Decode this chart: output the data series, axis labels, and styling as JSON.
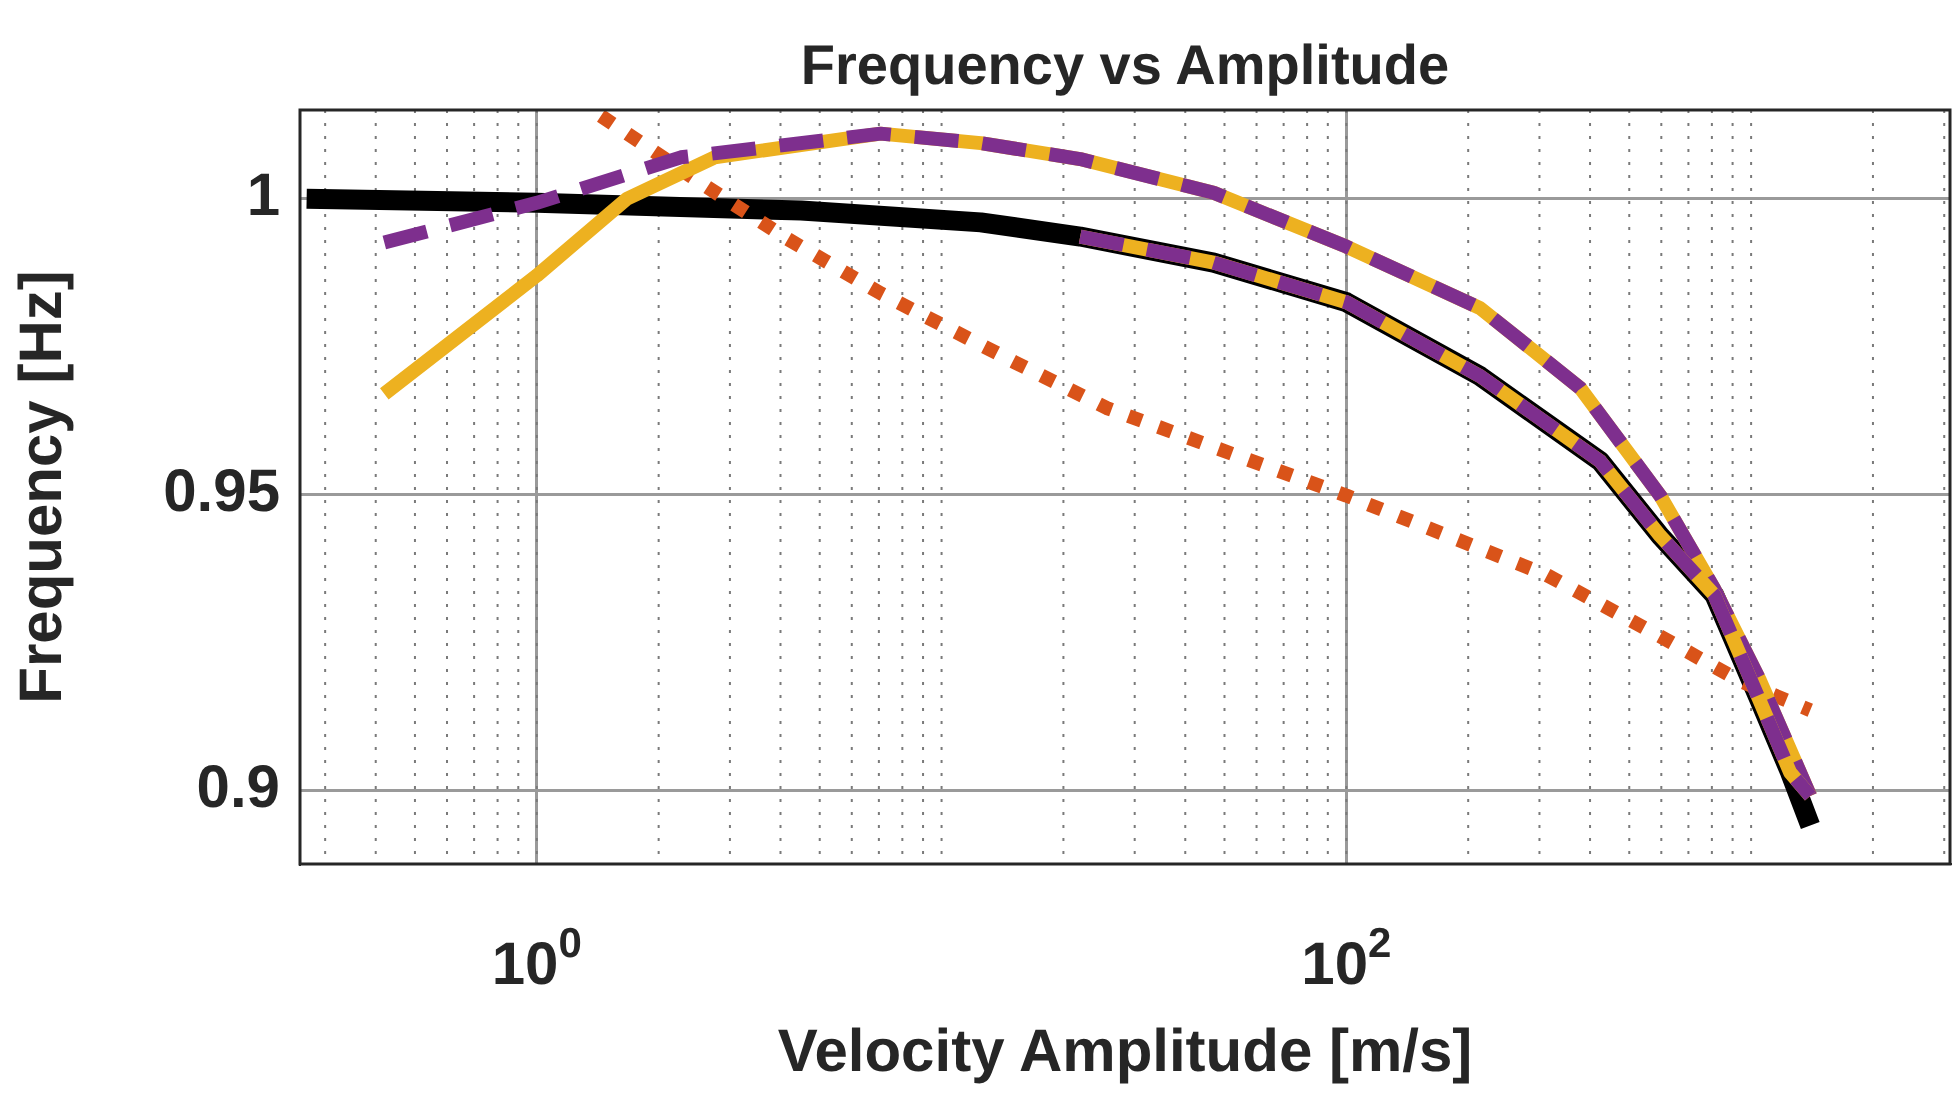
{
  "chart_data": {
    "type": "line",
    "title": "Frequency vs Amplitude",
    "xlabel": "Velocity Amplitude [m/s]",
    "ylabel": "Frequency [Hz]",
    "log": "x",
    "grid": true,
    "legend": false,
    "marker": "none",
    "xlim": [
      0.26,
      3100
    ],
    "xticks": [
      {
        "value": 1,
        "label": "10$^{0}$"
      },
      {
        "value": 100,
        "label": "10$^{2}$"
      }
    ],
    "ylim": [
      0.8875,
      1.015
    ],
    "yticks": [
      0.9,
      0.95,
      1
    ],
    "series": [
      {
        "color": "#000000",
        "line_style": "solid",
        "x": [
          0.27,
          1,
          4.5,
          12.5,
          22,
          47,
          100,
          214,
          424,
          596,
          811,
          1052,
          1248,
          1400
        ],
        "values": [
          1.0,
          0.9993,
          0.998,
          0.996,
          0.9936,
          0.9892,
          0.9825,
          0.97,
          0.9556,
          0.943,
          0.933,
          0.915,
          0.903,
          0.894
        ]
      },
      {
        "color": "#d95319",
        "line_style": "dotted",
        "x": [
          1.44,
          2.63,
          4.14,
          7.07,
          15.1,
          25.6,
          100,
          312,
          596,
          935,
          1400
        ],
        "values": [
          1.014,
          1.002,
          0.9933,
          0.984,
          0.9724,
          0.9646,
          0.9498,
          0.9364,
          0.926,
          0.9185,
          0.9135
        ]
      },
      {
        "color": "#edb120",
        "line_style": "solid",
        "x": [
          0.42,
          1,
          1.67,
          2.75,
          7.07,
          12.5,
          22,
          47,
          100,
          214,
          378,
          596,
          811,
          1052,
          1400
        ],
        "values": [
          0.967,
          0.987,
          1.0,
          1.007,
          1.011,
          1.0094,
          1.0067,
          1.001,
          0.9919,
          0.9815,
          0.968,
          0.9498,
          0.934,
          0.9185,
          0.899
        ]
      },
      {
        "color": "#7e2f8e",
        "line_style": "dashed",
        "x": [
          0.42,
          1,
          2.27,
          7.07,
          12.5,
          22,
          47,
          100,
          214,
          378,
          596,
          811,
          1052,
          1400
        ],
        "values": [
          0.9926,
          0.9993,
          1.007,
          1.011,
          1.0094,
          1.0067,
          1.001,
          0.9919,
          0.9815,
          0.968,
          0.9498,
          0.934,
          0.9185,
          0.899
        ]
      },
      {
        "color": "#edb120",
        "line_style": "solid",
        "x": [
          22,
          47,
          100,
          214,
          424,
          596,
          811,
          1052,
          1248,
          1400
        ],
        "values": [
          0.9936,
          0.9892,
          0.9825,
          0.97,
          0.9556,
          0.943,
          0.933,
          0.915,
          0.903,
          0.899
        ]
      },
      {
        "color": "#7e2f8e",
        "line_style": "dashed",
        "x": [
          22,
          47,
          100,
          214,
          424,
          596,
          811,
          1052,
          1248,
          1400
        ],
        "values": [
          0.9936,
          0.9892,
          0.9825,
          0.97,
          0.9556,
          0.943,
          0.933,
          0.915,
          0.903,
          0.899
        ]
      }
    ]
  }
}
